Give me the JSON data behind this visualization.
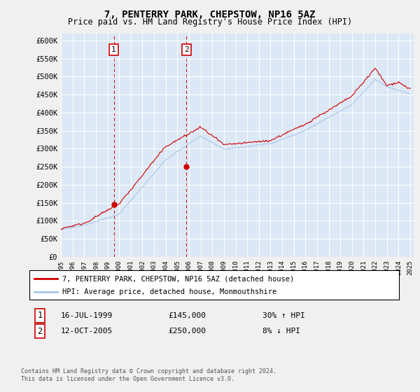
{
  "title": "7, PENTERRY PARK, CHEPSTOW, NP16 5AZ",
  "subtitle": "Price paid vs. HM Land Registry's House Price Index (HPI)",
  "ylabel_ticks": [
    "£0",
    "£50K",
    "£100K",
    "£150K",
    "£200K",
    "£250K",
    "£300K",
    "£350K",
    "£400K",
    "£450K",
    "£500K",
    "£550K",
    "£600K"
  ],
  "ylim": [
    0,
    620000
  ],
  "yticks": [
    0,
    50000,
    100000,
    150000,
    200000,
    250000,
    300000,
    350000,
    400000,
    450000,
    500000,
    550000,
    600000
  ],
  "hpi_color": "#a8c8e8",
  "price_color": "#cc0000",
  "vline_color": "#cc0000",
  "marker1_value": 145000,
  "marker2_value": 250000,
  "sale1_year": 1999.54,
  "sale2_year": 2005.79,
  "legend_line1": "7, PENTERRY PARK, CHEPSTOW, NP16 5AZ (detached house)",
  "legend_line2": "HPI: Average price, detached house, Monmouthshire",
  "note1_date": "16-JUL-1999",
  "note1_price": "£145,000",
  "note1_hpi": "30% ↑ HPI",
  "note2_date": "12-OCT-2005",
  "note2_price": "£250,000",
  "note2_hpi": "8% ↓ HPI",
  "footer": "Contains HM Land Registry data © Crown copyright and database right 2024.\nThis data is licensed under the Open Government Licence v3.0.",
  "fig_bg_color": "#f0f0f0",
  "plot_bg_color": "#dce8f5"
}
